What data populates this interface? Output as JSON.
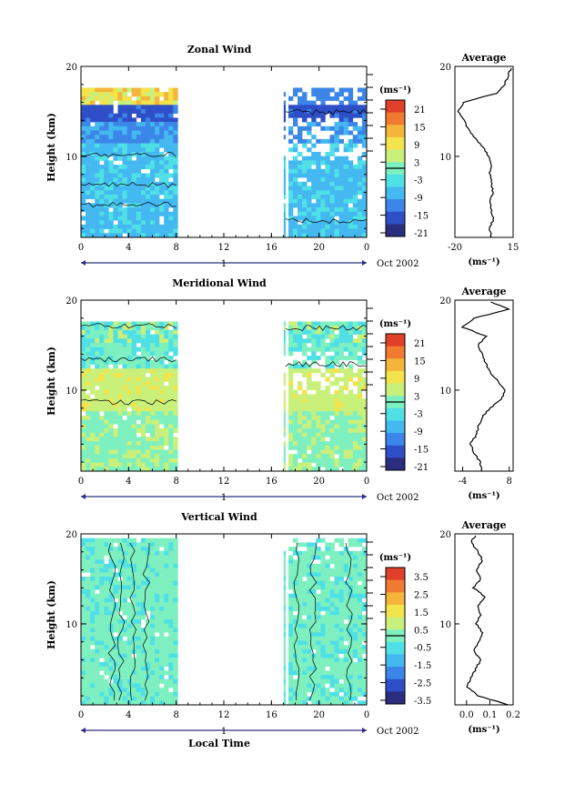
{
  "panels": [
    {
      "id": "zonal",
      "title": "Zonal Wind",
      "ylabel": "Height (km)",
      "unit": "(ms⁻¹)",
      "date_label": "Oct 2002",
      "day_label": "1",
      "colorbar_ticks": [
        "21",
        "15",
        "9",
        "3",
        "-3",
        "-9",
        "-15",
        "-21"
      ],
      "avg_title": "Average",
      "avg_unit": "(ms⁻¹)",
      "avg_xticks": [
        "-20",
        "15"
      ]
    },
    {
      "id": "meridional",
      "title": "Meridional Wind",
      "ylabel": "Height (km)",
      "unit": "(ms⁻¹)",
      "date_label": "Oct 2002",
      "day_label": "1",
      "colorbar_ticks": [
        "21",
        "15",
        "9",
        "3",
        "-3",
        "-9",
        "-15",
        "-21"
      ],
      "avg_title": "Average",
      "avg_unit": "(ms⁻¹)",
      "avg_xticks": [
        "-4",
        "8"
      ]
    },
    {
      "id": "vertical",
      "title": "Vertical Wind",
      "ylabel": "Height (km)",
      "unit": "(ms⁻¹)",
      "date_label": "Oct 2002",
      "day_label": "1",
      "colorbar_ticks": [
        "3.5",
        "2.5",
        "1.5",
        "0.5",
        "-0.5",
        "-1.5",
        "-2.5",
        "-3.5"
      ],
      "avg_title": "Average",
      "avg_unit": "(ms⁻¹)",
      "avg_xticks": [
        "0.0",
        "0.1",
        "0.2"
      ]
    }
  ],
  "xlabel": "Local Time",
  "colors": {
    "scale": [
      "#2b2d7e",
      "#2e4fc8",
      "#3b86e8",
      "#44b8f0",
      "#4fe0e6",
      "#7ef0c0",
      "#c8f07a",
      "#f2e44a",
      "#f5b53a",
      "#f07a30",
      "#e0402a"
    ]
  },
  "chart_data": [
    {
      "type": "heatmap",
      "title": "Zonal Wind",
      "ylabel": "Height (km)",
      "x_tick_labels": [
        "0",
        "4",
        "8",
        "12",
        "16",
        "20",
        "0"
      ],
      "y_tick_labels": [
        "10",
        "20"
      ],
      "x_range": [
        0,
        24
      ],
      "y_range": [
        1,
        20
      ],
      "data_gaps_hours": [
        [
          8,
          17
        ]
      ],
      "colorbar_range": [
        -24,
        24
      ],
      "average_profile": {
        "xlim": [
          -20,
          15
        ],
        "height_km": [
          1,
          2,
          3,
          4,
          5,
          6,
          7,
          8,
          9,
          10,
          11,
          12,
          13,
          14,
          15,
          16,
          17,
          18,
          19,
          20
        ],
        "value": [
          2,
          1,
          3,
          2,
          1,
          3,
          2,
          1,
          2,
          0,
          -3,
          -8,
          -12,
          -14,
          -18,
          -15,
          5,
          10,
          12,
          14
        ]
      }
    },
    {
      "type": "heatmap",
      "title": "Meridional Wind",
      "ylabel": "Height (km)",
      "x_tick_labels": [
        "0",
        "4",
        "8",
        "12",
        "16",
        "20",
        "0"
      ],
      "y_tick_labels": [
        "10",
        "20"
      ],
      "x_range": [
        0,
        24
      ],
      "y_range": [
        1,
        20
      ],
      "data_gaps_hours": [
        [
          8,
          17
        ]
      ],
      "colorbar_range": [
        -24,
        24
      ],
      "average_profile": {
        "xlim": [
          -6,
          9
        ],
        "height_km": [
          1,
          2,
          3,
          4,
          5,
          6,
          7,
          8,
          9,
          10,
          11,
          12,
          13,
          14,
          15,
          16,
          17,
          18,
          19,
          20
        ],
        "value": [
          1,
          0.5,
          -1,
          -2,
          -0.5,
          0,
          1,
          3,
          6,
          7,
          5,
          3,
          2,
          1,
          0,
          2,
          -4,
          -1,
          8,
          2
        ]
      }
    },
    {
      "type": "heatmap",
      "title": "Vertical Wind",
      "ylabel": "Height (km)",
      "x_tick_labels": [
        "0",
        "4",
        "8",
        "12",
        "16",
        "20",
        "0"
      ],
      "y_tick_labels": [
        "10",
        "20"
      ],
      "x_range": [
        0,
        24
      ],
      "y_range": [
        1,
        20
      ],
      "data_gaps_hours": [
        [
          8,
          17
        ]
      ],
      "colorbar_range": [
        -4,
        4
      ],
      "average_profile": {
        "xlim": [
          -0.05,
          0.2
        ],
        "height_km": [
          1,
          2,
          3,
          4,
          5,
          6,
          7,
          8,
          9,
          10,
          11,
          12,
          13,
          14,
          15,
          16,
          17,
          18,
          19,
          20
        ],
        "value": [
          0.18,
          0.05,
          0.0,
          0.02,
          0.04,
          0.06,
          0.03,
          0.05,
          0.07,
          0.04,
          0.06,
          0.05,
          0.08,
          0.03,
          0.06,
          0.04,
          0.07,
          0.05,
          0.02,
          0.04
        ]
      }
    }
  ]
}
